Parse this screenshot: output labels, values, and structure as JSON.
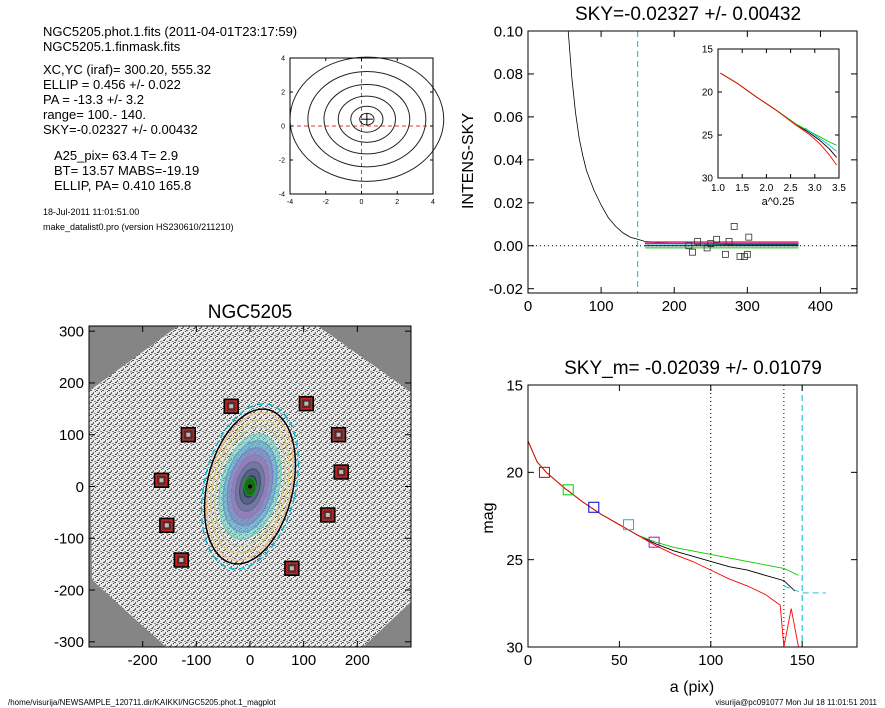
{
  "header": {
    "lines_a": [
      "NGC5205.phot.1.fits  (2011-04-01T23:17:59)",
      "NGC5205.1.finmask.fits"
    ],
    "lines_b": [
      "XC,YC (iraf)=   300.20, 555.32",
      "ELLIP = 0.456 +/- 0.022",
      "PA    = -13.3 +/-   3.2",
      "range=  100.-  140.",
      "SKY=-0.02327 +/- 0.00432"
    ],
    "lines_c": [
      "A25_pix= 63.4   T= 2.9",
      "BT=  13.57   MABS=-19.19",
      "ELLIP, PA= 0.410   165.8"
    ],
    "lines_d": [
      "18-Jul-2011 11:01:51.00",
      "make_datalist0.pro (version HS230610/211210)"
    ]
  },
  "footer": {
    "left": "/home/visurija/NEWSAMPLE_120711.dir/KAIKKI/NGC5205.phot.1_magplot",
    "right": "visurija@pc091077  Mon Jul 18 11:01:51 2011"
  },
  "chart_data": [
    {
      "id": "contour",
      "type": "contour",
      "title": "",
      "xlim": [
        -4,
        4
      ],
      "ylim": [
        -4,
        4
      ],
      "xticks": [
        "-4",
        "-2",
        "0",
        "2",
        "4"
      ],
      "yticks": [
        "-4",
        "-2",
        "0",
        "2",
        "4"
      ],
      "center": [
        0.3,
        0.4
      ],
      "contour_radii": [
        0.4,
        0.9,
        1.6,
        2.4,
        3.3,
        4.3
      ],
      "axis_ratio": 0.85
    },
    {
      "id": "sky",
      "type": "line",
      "title": "SKY=-0.02327 +/- 0.00432",
      "xlabel": "",
      "ylabel": "INTENS-SKY",
      "xlim": [
        0,
        450
      ],
      "ylim": [
        -0.022,
        0.1
      ],
      "xticks": [
        "0",
        "100",
        "200",
        "300",
        "400"
      ],
      "yticks": [
        "-0.02",
        "0.00",
        "0.02",
        "0.04",
        "0.06",
        "0.08",
        "0.10"
      ],
      "vline_x": 150,
      "profile": {
        "x": [
          55,
          60,
          65,
          70,
          75,
          80,
          90,
          100,
          110,
          120,
          130,
          140,
          150,
          160,
          170,
          180,
          190,
          200,
          220,
          250,
          280,
          310,
          340,
          370
        ],
        "y": [
          0.1,
          0.078,
          0.062,
          0.05,
          0.042,
          0.035,
          0.026,
          0.019,
          0.013,
          0.009,
          0.006,
          0.004,
          0.003,
          0.002,
          0.0018,
          0.0014,
          0.0012,
          0.001,
          0.0008,
          0.0006,
          0.0005,
          0.0004,
          0.0004,
          0.0004
        ]
      },
      "sky_squares": {
        "x": [
          220,
          232,
          245,
          258,
          270,
          282,
          290,
          296,
          302,
          225,
          250,
          275,
          300
        ],
        "y": [
          0.0,
          0.002,
          -0.001,
          0.003,
          -0.004,
          0.009,
          -0.005,
          -0.005,
          0.004,
          -0.003,
          0.001,
          0.002,
          -0.004
        ]
      },
      "inset": {
        "xlabel": "a^0.25",
        "xlim": [
          1.0,
          3.5
        ],
        "ylim": [
          15,
          30
        ],
        "xticks": [
          "1.0",
          "1.5",
          "2.0",
          "2.5",
          "3.0",
          "3.5"
        ],
        "yticks": [
          "15",
          "20",
          "25",
          "30"
        ],
        "series": [
          {
            "color": "#000000",
            "x": [
              1.05,
              1.4,
              1.8,
              2.2,
              2.6,
              2.9,
              3.1,
              3.3,
              3.45
            ],
            "y": [
              17.8,
              19.0,
              20.6,
              22.1,
              23.7,
              24.8,
              25.6,
              26.6,
              27.6
            ]
          },
          {
            "color": "#00cc00",
            "x": [
              1.05,
              1.4,
              1.8,
              2.2,
              2.6,
              2.9,
              3.1,
              3.3,
              3.45
            ],
            "y": [
              17.8,
              19.0,
              20.6,
              22.1,
              23.7,
              24.6,
              25.2,
              25.8,
              26.2
            ]
          },
          {
            "color": "#ff0000",
            "x": [
              1.05,
              1.4,
              1.8,
              2.2,
              2.6,
              2.9,
              3.1,
              3.3,
              3.45
            ],
            "y": [
              17.8,
              19.0,
              20.6,
              22.1,
              23.8,
              25.0,
              26.0,
              27.3,
              28.5
            ]
          },
          {
            "color": "#00bcd4",
            "x": [
              2.8,
              3.1,
              3.3,
              3.45
            ],
            "y": [
              24.2,
              25.4,
              26.2,
              26.9
            ]
          }
        ]
      }
    },
    {
      "id": "image",
      "type": "image",
      "title": "NGC5205",
      "xlim": [
        -300,
        300
      ],
      "ylim": [
        -310,
        310
      ],
      "xticks": [
        "-200",
        "-100",
        "0",
        "100",
        "200"
      ],
      "yticks": [
        "-300",
        "-200",
        "-100",
        "0",
        "100",
        "200",
        "300"
      ],
      "ellipse": {
        "a": 140,
        "b": 76,
        "pa_deg": -13.3
      },
      "mask_squares": {
        "x": [
          -35,
          105,
          -115,
          165,
          -165,
          170,
          -155,
          145,
          -128,
          78
        ],
        "y": [
          155,
          160,
          100,
          100,
          12,
          28,
          -75,
          -55,
          -142,
          -158
        ]
      }
    },
    {
      "id": "mag",
      "type": "line",
      "title": "SKY_m= -0.02039 +/- 0.01079",
      "xlabel": "a (pix)",
      "ylabel": "mag",
      "xlim": [
        0,
        180
      ],
      "ylim": [
        15,
        30
      ],
      "xticks": [
        "0",
        "50",
        "100",
        "150"
      ],
      "yticks": [
        "15",
        "20",
        "25",
        "30"
      ],
      "vlines_dotted": [
        100,
        140
      ],
      "vline_dashed": 150,
      "series": [
        {
          "color": "#000000",
          "x": [
            0,
            5,
            10,
            20,
            30,
            40,
            50,
            60,
            70,
            80,
            90,
            100,
            110,
            120,
            130,
            140,
            146
          ],
          "y": [
            18.2,
            19.4,
            20.0,
            20.9,
            21.7,
            22.4,
            23.0,
            23.6,
            24.1,
            24.5,
            24.8,
            25.1,
            25.4,
            25.6,
            25.9,
            26.2,
            26.8
          ]
        },
        {
          "color": "#00cc00",
          "x": [
            0,
            5,
            10,
            20,
            30,
            40,
            50,
            60,
            70,
            80,
            90,
            100,
            110,
            120,
            130,
            140,
            148
          ],
          "y": [
            18.2,
            19.4,
            20.0,
            20.9,
            21.7,
            22.4,
            23.0,
            23.6,
            24.0,
            24.3,
            24.5,
            24.7,
            24.9,
            25.1,
            25.3,
            25.5,
            25.9
          ]
        },
        {
          "color": "#ff0000",
          "x": [
            0,
            5,
            10,
            20,
            30,
            40,
            50,
            60,
            70,
            80,
            90,
            100,
            110,
            120,
            130,
            138,
            140,
            144,
            148
          ],
          "y": [
            18.2,
            19.4,
            20.0,
            20.9,
            21.7,
            22.4,
            23.0,
            23.6,
            24.2,
            24.7,
            25.1,
            25.6,
            26.1,
            26.5,
            27.0,
            27.6,
            30,
            27.8,
            30
          ]
        },
        {
          "color": "#00bcd4",
          "x": [
            140,
            145,
            150,
            155,
            163
          ],
          "y": [
            26.5,
            26.7,
            26.9,
            26.9,
            26.9
          ]
        }
      ],
      "squares": [
        {
          "x": 9,
          "y": 20.0,
          "color": "#cc0000"
        },
        {
          "x": 22,
          "y": 21.0,
          "color": "#00cc00"
        },
        {
          "x": 36,
          "y": 22.0,
          "color": "#0000cc"
        },
        {
          "x": 55,
          "y": 23.0,
          "color": "#00bcd4"
        },
        {
          "x": 69,
          "y": 24.0,
          "color": "#cc00cc"
        }
      ]
    }
  ]
}
